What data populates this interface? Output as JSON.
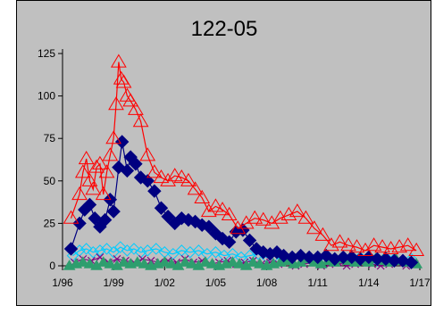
{
  "chart_data": {
    "type": "line",
    "title": "122-05",
    "xlabel": "",
    "ylabel": "",
    "y_ticks": [
      "0",
      "25",
      "50",
      "75",
      "100",
      "125"
    ],
    "x_ticks": [
      "1/96",
      "1/99",
      "1/02",
      "1/05",
      "1/08",
      "1/11",
      "1/14",
      "1/17"
    ],
    "ylim": [
      0,
      125
    ],
    "xlim": [
      1996.0,
      2017.0
    ],
    "grid": false,
    "legend": "none",
    "series": [
      {
        "marker": "triangle-open",
        "color": "#ff0000",
        "x": [
          1996.5,
          1997.0,
          1997.2,
          1997.4,
          1997.6,
          1997.8,
          1998.0,
          1998.2,
          1998.4,
          1998.6,
          1998.8,
          1999.0,
          1999.15,
          1999.3,
          1999.45,
          1999.6,
          1999.8,
          2000.0,
          2000.3,
          2000.6,
          2001.0,
          2001.4,
          2001.8,
          2002.2,
          2002.6,
          2003.0,
          2003.4,
          2003.8,
          2004.2,
          2004.6,
          2005.0,
          2005.4,
          2005.8,
          2006.3,
          2006.8,
          2007.3,
          2007.8,
          2008.3,
          2008.8,
          2009.3,
          2009.8,
          2010.3,
          2010.8,
          2011.3,
          2011.8,
          2012.3,
          2012.8,
          2013.3,
          2013.8,
          2014.3,
          2014.8,
          2015.3,
          2015.8,
          2016.3,
          2016.8
        ],
        "y": [
          28,
          42,
          55,
          63,
          50,
          45,
          58,
          60,
          42,
          55,
          65,
          75,
          95,
          120,
          110,
          108,
          100,
          97,
          92,
          85,
          65,
          55,
          52,
          50,
          53,
          52,
          50,
          45,
          40,
          32,
          35,
          33,
          30,
          22,
          25,
          28,
          27,
          25,
          28,
          30,
          32,
          28,
          22,
          18,
          12,
          14,
          12,
          11,
          9,
          12,
          11,
          10,
          11,
          12,
          9
        ]
      },
      {
        "marker": "diamond-filled",
        "color": "#000080",
        "x": [
          1996.5,
          1997.0,
          1997.3,
          1997.6,
          1997.9,
          1998.2,
          1998.5,
          1998.8,
          1999.0,
          1999.3,
          1999.5,
          1999.8,
          2000.0,
          2000.3,
          2000.6,
          2001.0,
          2001.4,
          2001.8,
          2002.2,
          2002.6,
          2003.0,
          2003.4,
          2003.8,
          2004.2,
          2004.6,
          2005.0,
          2005.4,
          2005.8,
          2006.2,
          2006.6,
          2007.0,
          2007.4,
          2007.8,
          2008.2,
          2008.6,
          2009.0,
          2009.5,
          2010.0,
          2010.5,
          2011.0,
          2011.5,
          2012.0,
          2012.5,
          2013.0,
          2013.5,
          2014.0,
          2014.5,
          2015.0,
          2015.5,
          2016.0,
          2016.5
        ],
        "y": [
          10,
          25,
          33,
          36,
          28,
          23,
          27,
          39,
          32,
          58,
          73,
          56,
          64,
          60,
          52,
          50,
          44,
          34,
          29,
          25,
          28,
          27,
          26,
          24,
          23,
          19,
          16,
          14,
          20,
          21,
          15,
          10,
          8,
          7,
          8,
          6,
          5,
          6,
          5,
          5,
          6,
          4,
          5,
          5,
          4,
          5,
          4,
          4,
          3,
          3,
          2
        ]
      },
      {
        "marker": "diamond-open",
        "color": "#00ccff",
        "x": [
          1996.6,
          1997.0,
          1997.4,
          1997.8,
          1998.2,
          1998.6,
          1999.0,
          1999.4,
          1999.8,
          2000.2,
          2000.6,
          2001.0,
          2001.5,
          2002.0,
          2002.5,
          2003.0,
          2003.5,
          2004.0,
          2004.5,
          2005.0,
          2005.5,
          2006.0,
          2006.5,
          2007.0,
          2007.5,
          2008.0,
          2008.5,
          2009.0,
          2009.5,
          2010.0,
          2010.5,
          2011.0,
          2011.5,
          2012.0,
          2012.5,
          2013.0,
          2013.5,
          2014.0,
          2014.5,
          2015.0,
          2015.5,
          2016.0,
          2016.5
        ],
        "y": [
          6,
          9,
          10,
          8,
          9,
          10,
          8,
          11,
          9,
          10,
          8,
          9,
          10,
          8,
          7,
          9,
          8,
          9,
          7,
          8,
          6,
          7,
          5,
          6,
          7,
          5,
          6,
          4,
          5,
          6,
          5,
          4,
          6,
          3,
          5,
          4,
          5,
          4,
          3,
          5,
          4,
          3,
          4
        ]
      },
      {
        "marker": "x",
        "color": "#800080",
        "x": [
          1996.7,
          1997.2,
          1997.7,
          1998.2,
          1998.7,
          1999.2,
          1999.7,
          2000.2,
          2000.7,
          2001.2,
          2001.7,
          2002.2,
          2002.7,
          2003.2,
          2003.7,
          2004.2,
          2004.7,
          2005.2,
          2005.7,
          2006.2,
          2006.7,
          2007.2,
          2007.7,
          2008.2,
          2008.7,
          2009.2,
          2009.7,
          2010.2,
          2010.7,
          2011.2,
          2011.7,
          2012.2,
          2012.7,
          2013.2,
          2013.7,
          2014.2,
          2014.7,
          2015.2,
          2015.7,
          2016.2,
          2016.7
        ],
        "y": [
          2,
          4,
          3,
          5,
          2,
          4,
          3,
          2,
          4,
          3,
          2,
          3,
          2,
          4,
          2,
          3,
          1,
          2,
          3,
          1,
          2,
          3,
          1,
          2,
          1,
          2,
          0,
          1,
          2,
          0,
          1,
          2,
          0,
          1,
          2,
          1,
          0,
          1,
          2,
          0,
          1
        ]
      },
      {
        "marker": "triangle-filled",
        "color": "#2e9e6e",
        "x": [
          1996.4,
          1996.8,
          1997.2,
          1997.6,
          1998.0,
          1998.4,
          1998.8,
          1999.2,
          1999.6,
          2000.0,
          2000.4,
          2000.8,
          2001.2,
          2001.6,
          2002.0,
          2002.4,
          2002.8,
          2003.2,
          2003.6,
          2004.0,
          2004.4,
          2004.8,
          2005.2,
          2005.6,
          2006.0,
          2006.4,
          2006.8,
          2007.2,
          2007.6,
          2008.0,
          2008.4,
          2008.8,
          2009.2,
          2009.6,
          2010.0,
          2010.4,
          2010.8,
          2011.2,
          2011.6,
          2012.0,
          2012.4,
          2012.8,
          2013.2,
          2013.6,
          2014.0,
          2014.4,
          2014.8,
          2015.2,
          2015.6,
          2016.0,
          2016.4,
          2016.8
        ],
        "y": [
          0,
          1,
          2,
          1,
          0,
          2,
          1,
          0,
          2,
          1,
          2,
          1,
          0,
          1,
          2,
          1,
          0,
          2,
          1,
          0,
          2,
          1,
          0,
          1,
          2,
          1,
          0,
          2,
          1,
          0,
          1,
          2,
          3,
          1,
          2,
          4,
          2,
          1,
          3,
          2,
          4,
          3,
          2,
          3,
          2,
          4,
          3,
          2,
          4,
          3,
          2,
          1
        ]
      }
    ]
  }
}
